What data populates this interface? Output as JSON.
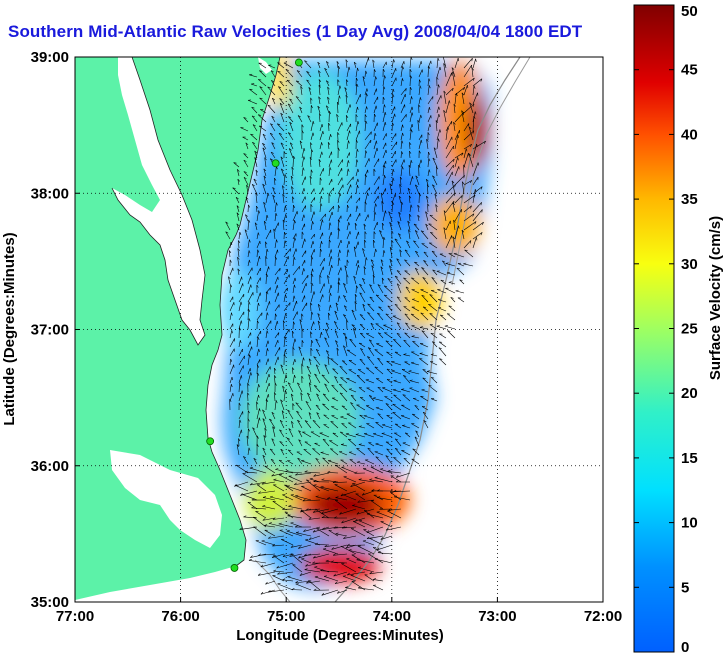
{
  "title": "Southern Mid-Atlantic Raw Velocities (1 Day Avg) 2008/04/04 1800 EDT",
  "map": {
    "xlabel": "Longitude (Degrees:Minutes)",
    "ylabel": "Latitude (Degrees:Minutes)",
    "x_ticks": [
      "77:00",
      "76:00",
      "75:00",
      "74:00",
      "73:00",
      "72:00"
    ],
    "y_ticks": [
      "39:00",
      "38:00",
      "37:00",
      "36:00",
      "35:00"
    ],
    "x_range_deg": [
      -77,
      -72
    ],
    "y_range_deg": [
      35,
      39
    ],
    "land_color": "#5cf2a8",
    "grid": "dotted"
  },
  "colorbar": {
    "label": "Surface Velocity (cm/s)",
    "ticks": [
      "0",
      "5",
      "10",
      "15",
      "20",
      "25",
      "30",
      "35",
      "40",
      "45",
      "50"
    ],
    "range": [
      0,
      50
    ],
    "colormap": "jet"
  },
  "sites": [
    {
      "lon": -74.88,
      "lat": 38.96
    },
    {
      "lon": -75.1,
      "lat": 38.22
    },
    {
      "lon": -75.72,
      "lat": 36.18
    },
    {
      "lon": -75.49,
      "lat": 35.25
    }
  ]
}
